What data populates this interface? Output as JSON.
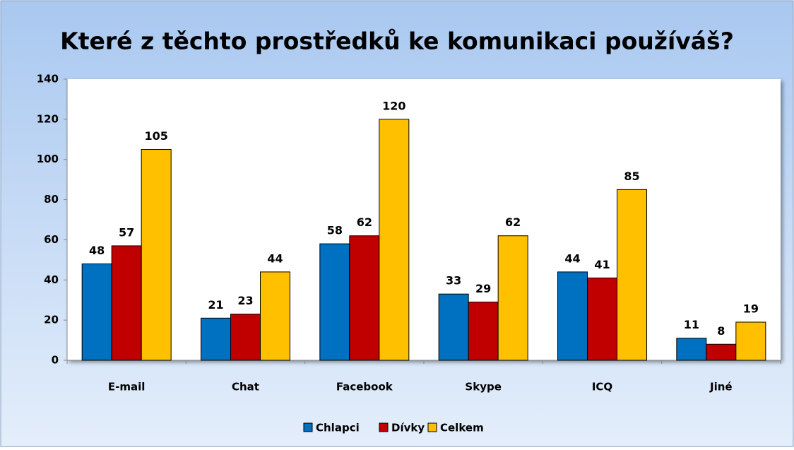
{
  "chart_data": {
    "type": "bar",
    "title": "Které z těchto prostředků ke komunikaci používáš?",
    "categories": [
      "E-mail",
      "Chat",
      "Facebook",
      "Skype",
      "ICQ",
      "Jiné"
    ],
    "series": [
      {
        "name": "Chlapci",
        "color": "#0070c0",
        "values": [
          48,
          21,
          58,
          33,
          44,
          11
        ]
      },
      {
        "name": "Dívky",
        "color": "#c00000",
        "values": [
          57,
          23,
          62,
          29,
          41,
          8
        ]
      },
      {
        "name": "Celkem",
        "color": "#ffc000",
        "values": [
          105,
          44,
          120,
          62,
          85,
          19
        ]
      }
    ],
    "ylim": [
      0,
      140
    ],
    "yticks": [
      0,
      20,
      40,
      60,
      80,
      100,
      120,
      140
    ],
    "grid": false,
    "legend": "bottom"
  }
}
